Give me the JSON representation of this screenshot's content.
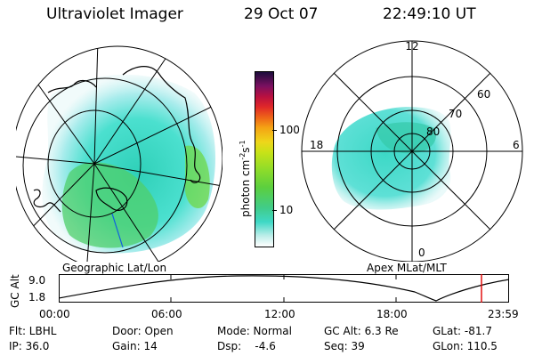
{
  "header": {
    "app_title": "Ultraviolet Imager",
    "date": "29 Oct 07",
    "time": "22:49:10 UT"
  },
  "left_map": {
    "label": "Geographic Lat/Lon"
  },
  "right_map": {
    "label": "Apex MLat/MLT",
    "clock_labels": {
      "top": "12",
      "left": "18",
      "right": "6",
      "bottom": "0"
    },
    "lat_labels": [
      "60",
      "70",
      "80"
    ]
  },
  "colorbar": {
    "unit_prefix": "photon cm",
    "unit_exp1": "-2",
    "unit_mid": "s",
    "unit_exp2": "-1",
    "tick_100": "100",
    "tick_10": "10"
  },
  "altitude_plot": {
    "ylabel": "GC Alt",
    "y_top": "9.0",
    "y_bottom": "1.8",
    "x_ticks": [
      "00:00",
      "06:00",
      "12:00",
      "18:00",
      "23:59"
    ],
    "marker_color": "#e00000"
  },
  "status": {
    "flt": "Flt: LBHL",
    "ip": "IP: 36.0",
    "door": "Door: Open",
    "gain": "Gain: 14",
    "mode": "Mode: Normal",
    "dsp": "Dsp:    -4.6",
    "gc_alt": "GC Alt: 6.3 Re",
    "seq": "Seq: 39",
    "glat": "GLat: -81.7",
    "glon": "GLon: 110.5"
  }
}
